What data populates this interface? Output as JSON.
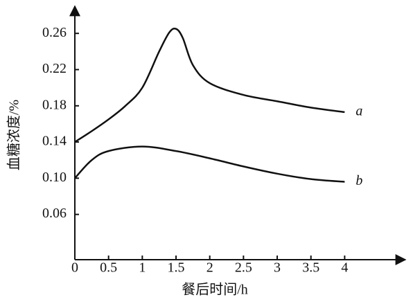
{
  "chart_data": {
    "type": "line",
    "x_label": "餐后时间/h",
    "y_label": "血糖浓度/%",
    "xlim": [
      0,
      4.9
    ],
    "ylim": [
      0.01,
      0.29
    ],
    "xticks": [
      0,
      0.5,
      1,
      1.5,
      2,
      2.5,
      3,
      3.5,
      4
    ],
    "yticks": [
      0.06,
      {
        "value": 0.1,
        "label": "0.10"
      },
      0.14,
      0.18,
      0.22,
      0.26
    ],
    "series": [
      {
        "name": "a",
        "color": "#111111",
        "x": [
          0,
          0.25,
          0.5,
          0.75,
          1,
          1.25,
          1.4,
          1.5,
          1.6,
          1.75,
          2,
          2.5,
          3,
          3.5,
          4
        ],
        "values": [
          0.14,
          0.152,
          0.165,
          0.18,
          0.2,
          0.24,
          0.261,
          0.265,
          0.255,
          0.225,
          0.205,
          0.192,
          0.185,
          0.178,
          0.173
        ]
      },
      {
        "name": "b",
        "color": "#111111",
        "x": [
          0,
          0.25,
          0.5,
          1,
          1.5,
          2,
          2.5,
          3,
          3.5,
          4
        ],
        "values": [
          0.1,
          0.12,
          0.13,
          0.135,
          0.13,
          0.122,
          0.113,
          0.105,
          0.099,
          0.096
        ]
      }
    ]
  }
}
